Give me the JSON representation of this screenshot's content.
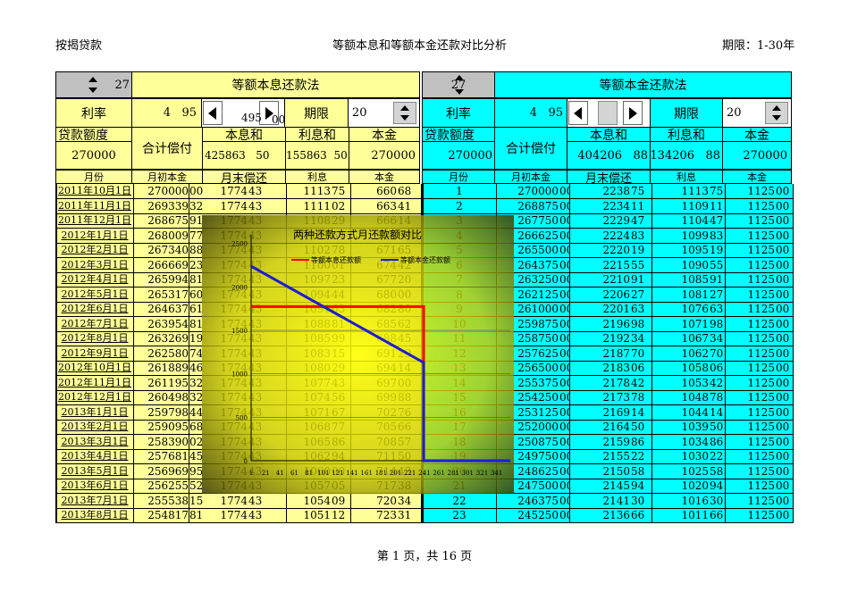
{
  "header": {
    "left": "按揭贷款",
    "center": "等额本息和等额本金还款对比分析",
    "right": "期限：1-30年"
  },
  "left": {
    "spinner_value": "27",
    "title": "等额本息还款法",
    "rate_label": "利率",
    "rate_int": "4",
    "rate_frac": "95",
    "scroll_value": "495",
    "scroll_sub": "00",
    "term_label": "期限",
    "term_value": "20",
    "loan_label": "贷款额度",
    "loan_value": "270000",
    "total_label": "合计偿付",
    "total_value": "425863",
    "total_frac": "50",
    "sum_label": "本息和",
    "interest_label": "利息和",
    "interest_value": "155863",
    "interest_frac": "50",
    "principal_label": "本金",
    "principal_value": "270000",
    "col_month": "月份",
    "col_begin": "月初本金",
    "col_end": "月末偿还",
    "col_interest": "利息",
    "col_principal": "本金"
  },
  "right": {
    "spinner_value": "27",
    "title": "等额本金还款法",
    "rate_label": "利率",
    "rate_int": "4",
    "rate_frac": "95",
    "term_label": "期限",
    "term_value": "20",
    "loan_label": "贷款额度",
    "loan_value": "270000",
    "total_label": "合计偿付",
    "sum_label": "本息和",
    "sum_value": "404206",
    "sum_frac": "88",
    "interest_label": "利息和",
    "interest_value": "134206",
    "interest_frac": "88",
    "principal_label": "本金",
    "principal_value": "270000",
    "col_month": "月份",
    "col_begin": "月初本金",
    "col_end": "月末偿还",
    "col_interest": "利息",
    "col_principal": "本金"
  },
  "left_rows": [
    [
      "2011年10月1日",
      "270000",
      "00",
      "1774",
      "43",
      "1113",
      "75",
      "660",
      "68"
    ],
    [
      "2011年11月1日",
      "269339",
      "32",
      "1774",
      "43",
      "1111",
      "02",
      "663",
      "41"
    ],
    [
      "2011年12月1日",
      "268675",
      "91",
      "1774",
      "43",
      "1108",
      "29",
      "666",
      "14"
    ],
    [
      "2012年1月1日",
      "268009",
      "77",
      "1774",
      "43",
      "1105",
      "54",
      "668",
      "89"
    ],
    [
      "2012年2月1日",
      "267340",
      "88",
      "1774",
      "43",
      "1102",
      "78",
      "671",
      "65"
    ],
    [
      "2012年3月1日",
      "266669",
      "23",
      "1774",
      "43",
      "1100",
      "01",
      "674",
      "42"
    ],
    [
      "2012年4月1日",
      "265994",
      "81",
      "1774",
      "43",
      "1097",
      "23",
      "677",
      "20"
    ],
    [
      "2012年5月1日",
      "265317",
      "60",
      "1774",
      "43",
      "1094",
      "44",
      "680",
      "00"
    ],
    [
      "2012年6月1日",
      "264637",
      "61",
      "1774",
      "43",
      "1091",
      "63",
      "682",
      "80"
    ],
    [
      "2012年7月1日",
      "263954",
      "81",
      "1774",
      "43",
      "1088",
      "81",
      "685",
      "62"
    ],
    [
      "2012年8月1日",
      "263269",
      "19",
      "1774",
      "43",
      "1085",
      "99",
      "688",
      "45"
    ],
    [
      "2012年9月1日",
      "262580",
      "74",
      "1774",
      "43",
      "1083",
      "15",
      "691",
      "29"
    ],
    [
      "2012年10月1日",
      "261889",
      "46",
      "1774",
      "43",
      "1080",
      "29",
      "694",
      "14"
    ],
    [
      "2012年11月1日",
      "261195",
      "32",
      "1774",
      "43",
      "1077",
      "43",
      "697",
      "00"
    ],
    [
      "2012年12月1日",
      "260498",
      "32",
      "1774",
      "43",
      "1074",
      "56",
      "699",
      "88"
    ],
    [
      "2013年1月1日",
      "259798",
      "44",
      "1774",
      "43",
      "1071",
      "67",
      "702",
      "76"
    ],
    [
      "2013年2月1日",
      "259095",
      "68",
      "1774",
      "43",
      "1068",
      "77",
      "705",
      "66"
    ],
    [
      "2013年3月1日",
      "258390",
      "02",
      "1774",
      "43",
      "1065",
      "86",
      "708",
      "57"
    ],
    [
      "2013年4月1日",
      "257681",
      "45",
      "1774",
      "43",
      "1062",
      "94",
      "711",
      "50"
    ],
    [
      "2013年5月1日",
      "256969",
      "95",
      "1774",
      "43",
      "1060",
      "00",
      "714",
      "43"
    ],
    [
      "2013年6月1日",
      "256255",
      "52",
      "1774",
      "43",
      "1057",
      "05",
      "717",
      "38"
    ],
    [
      "2013年7月1日",
      "255538",
      "15",
      "1774",
      "43",
      "1054",
      "09",
      "720",
      "34"
    ],
    [
      "2013年8月1日",
      "254817",
      "81",
      "1774",
      "43",
      "1051",
      "12",
      "723",
      "31"
    ]
  ],
  "right_rows": [
    [
      "1",
      "270000",
      "00",
      "2238",
      "75",
      "1113",
      "75",
      "1125",
      "00"
    ],
    [
      "2",
      "268875",
      "00",
      "2234",
      "11",
      "1109",
      "11",
      "1125",
      "00"
    ],
    [
      "3",
      "267750",
      "00",
      "2229",
      "47",
      "1104",
      "47",
      "1125",
      "00"
    ],
    [
      "4",
      "266625",
      "00",
      "2224",
      "83",
      "1099",
      "83",
      "1125",
      "00"
    ],
    [
      "5",
      "265500",
      "00",
      "2220",
      "19",
      "1095",
      "19",
      "1125",
      "00"
    ],
    [
      "6",
      "264375",
      "00",
      "2215",
      "55",
      "1090",
      "55",
      "1125",
      "00"
    ],
    [
      "7",
      "263250",
      "00",
      "2210",
      "91",
      "1085",
      "91",
      "1125",
      "00"
    ],
    [
      "8",
      "262125",
      "00",
      "2206",
      "27",
      "1081",
      "27",
      "1125",
      "00"
    ],
    [
      "9",
      "261000",
      "00",
      "2201",
      "63",
      "1076",
      "63",
      "1125",
      "00"
    ],
    [
      "10",
      "259875",
      "00",
      "2196",
      "98",
      "1071",
      "98",
      "1125",
      "00"
    ],
    [
      "11",
      "258750",
      "00",
      "2192",
      "34",
      "1067",
      "34",
      "1125",
      "00"
    ],
    [
      "12",
      "257625",
      "00",
      "2187",
      "70",
      "1062",
      "70",
      "1125",
      "00"
    ],
    [
      "13",
      "256500",
      "00",
      "2183",
      "06",
      "1058",
      "06",
      "1125",
      "00"
    ],
    [
      "14",
      "255375",
      "00",
      "2178",
      "42",
      "1053",
      "42",
      "1125",
      "00"
    ],
    [
      "15",
      "254250",
      "00",
      "2173",
      "78",
      "1048",
      "78",
      "1125",
      "00"
    ],
    [
      "16",
      "253125",
      "00",
      "2169",
      "14",
      "1044",
      "14",
      "1125",
      "00"
    ],
    [
      "17",
      "252000",
      "00",
      "2164",
      "50",
      "1039",
      "50",
      "1125",
      "00"
    ],
    [
      "18",
      "250875",
      "00",
      "2159",
      "86",
      "1034",
      "86",
      "1125",
      "00"
    ],
    [
      "19",
      "249750",
      "00",
      "2155",
      "22",
      "1030",
      "22",
      "1125",
      "00"
    ],
    [
      "20",
      "248625",
      "00",
      "2150",
      "58",
      "1025",
      "58",
      "1125",
      "00"
    ],
    [
      "21",
      "247500",
      "00",
      "2145",
      "94",
      "1020",
      "94",
      "1125",
      "00"
    ],
    [
      "22",
      "246375",
      "00",
      "2141",
      "30",
      "1016",
      "30",
      "1125",
      "00"
    ],
    [
      "23",
      "245250",
      "00",
      "2136",
      "66",
      "1011",
      "66",
      "1125",
      "00"
    ]
  ],
  "chart_data": {
    "type": "line",
    "title": "两种还款方式月还款额对比",
    "legend": [
      "等额本息还款额",
      "等额本金还款额"
    ],
    "y_ticks": [
      "0",
      "500",
      "1000",
      "1500",
      "2000",
      "2500"
    ],
    "x_ticks": [
      "1",
      "21",
      "41",
      "61",
      "81",
      "101",
      "121",
      "141",
      "161",
      "181",
      "201",
      "221",
      "241",
      "261",
      "281",
      "301",
      "321",
      "341"
    ],
    "ylim": [
      0,
      2600
    ],
    "series": [
      {
        "name": "等额本息还款额",
        "color": "#ff0000",
        "x": [
          1,
          240,
          240
        ],
        "y": [
          1774.43,
          1774.43,
          0
        ]
      },
      {
        "name": "等额本金还款额",
        "color": "#1c1cd4",
        "x": [
          1,
          240,
          240,
          360
        ],
        "y": [
          2238.75,
          1129.64,
          0,
          0
        ]
      }
    ]
  },
  "footer": "第 1 页，共 16 页"
}
